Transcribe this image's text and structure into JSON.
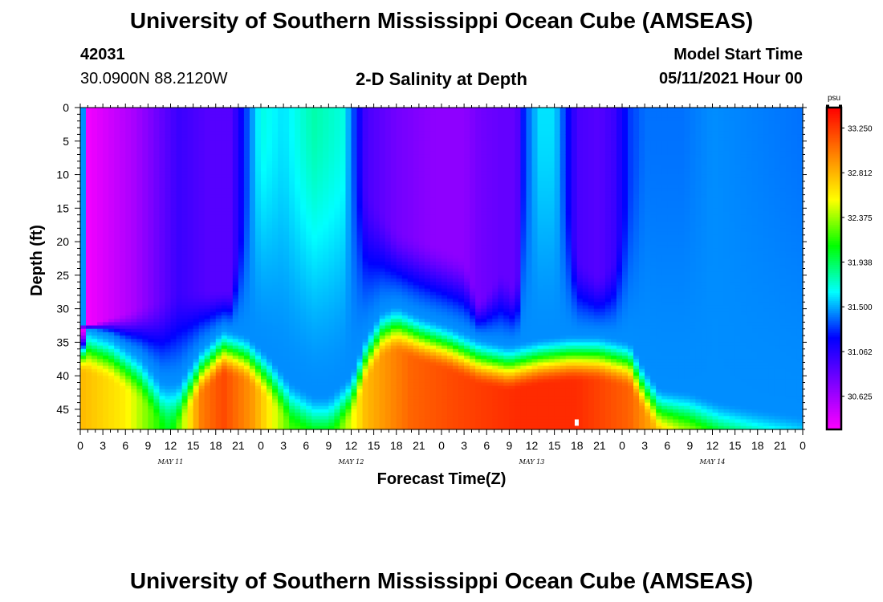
{
  "header": {
    "title": "University of Southern Mississippi Ocean Cube (AMSEAS)",
    "station_id": "42031",
    "station_coords": "30.0900N  88.2120W",
    "plot_title": "2-D Salinity at Depth",
    "model_start_label": "Model Start Time",
    "model_start_value": "05/11/2021 Hour 00"
  },
  "footer": {
    "title": "University of Southern Mississippi Ocean Cube (AMSEAS)"
  },
  "chart_data": {
    "type": "heatmap",
    "title": "2-D Salinity at Depth",
    "xlabel": "Forecast Time(Z)",
    "ylabel": "Depth (ft)",
    "x_range_hours": [
      0,
      96
    ],
    "y_range_ft": [
      0,
      48
    ],
    "x_tick_hours": [
      0,
      3,
      6,
      9,
      12,
      15,
      18,
      21,
      24,
      27,
      30,
      33,
      36,
      39,
      42,
      45,
      48,
      51,
      54,
      57,
      60,
      63,
      66,
      69,
      72,
      75,
      78,
      81,
      84,
      87,
      90,
      93,
      96
    ],
    "x_tick_labels": [
      "0",
      "3",
      "6",
      "9",
      "12",
      "15",
      "18",
      "21",
      "0",
      "3",
      "6",
      "9",
      "12",
      "15",
      "18",
      "21",
      "0",
      "3",
      "6",
      "9",
      "12",
      "15",
      "18",
      "21",
      "0",
      "3",
      "6",
      "9",
      "12",
      "15",
      "18",
      "21",
      "0"
    ],
    "date_labels": [
      {
        "label": "MAY 11",
        "hour": 12
      },
      {
        "label": "MAY 12",
        "hour": 36
      },
      {
        "label": "MAY 13",
        "hour": 60
      },
      {
        "label": "MAY 14",
        "hour": 84
      }
    ],
    "y_ticks": [
      0,
      5,
      10,
      15,
      20,
      25,
      30,
      35,
      40,
      45
    ],
    "y_tick_labels": [
      "0",
      "5",
      "10",
      "15",
      "20",
      "25",
      "30",
      "35",
      "40",
      "45"
    ],
    "colorbar": {
      "unit": "psu",
      "min": 30.3,
      "max": 33.45,
      "tick_values": [
        30.625,
        31.062,
        31.5,
        31.938,
        32.375,
        32.812,
        33.25
      ],
      "tick_labels": [
        "30.625",
        "31.062",
        "31.500",
        "31.938",
        "32.375",
        "32.812",
        "33.250"
      ],
      "colors": [
        "#ff00ff",
        "#8000ff",
        "#0000ff",
        "#00ffff",
        "#00ff00",
        "#ffff00",
        "#ff8000",
        "#ff0000"
      ]
    },
    "halocline_top_ft_by_hour": [
      [
        0,
        33.5
      ],
      [
        4,
        35
      ],
      [
        8,
        38
      ],
      [
        11,
        42
      ],
      [
        13,
        42
      ],
      [
        16,
        37
      ],
      [
        19,
        34
      ],
      [
        22,
        35
      ],
      [
        25,
        38
      ],
      [
        28,
        42
      ],
      [
        31,
        44
      ],
      [
        33,
        44
      ],
      [
        36,
        41
      ],
      [
        38,
        35
      ],
      [
        40,
        31.5
      ],
      [
        42,
        30.5
      ],
      [
        45,
        32
      ],
      [
        49,
        33.5
      ],
      [
        53,
        35.5
      ],
      [
        57,
        36.5
      ],
      [
        61,
        35.5
      ],
      [
        65,
        35
      ],
      [
        69,
        35
      ],
      [
        73,
        36
      ],
      [
        75,
        40
      ],
      [
        77,
        43
      ],
      [
        81,
        43.5
      ],
      [
        85,
        45
      ],
      [
        90,
        46
      ],
      [
        96,
        47
      ]
    ],
    "fresh_core_by_hour": [
      [
        0,
        30.3,
        33
      ],
      [
        7,
        30.6,
        30
      ],
      [
        13,
        31.0,
        27
      ],
      [
        17,
        30.9,
        27
      ],
      [
        20,
        30.9,
        27
      ],
      [
        22,
        31.3,
        12
      ],
      [
        24,
        31.7,
        0
      ],
      [
        27,
        31.6,
        0
      ],
      [
        31,
        31.8,
        0
      ],
      [
        35,
        31.7,
        0
      ],
      [
        36,
        31.4,
        0
      ],
      [
        38,
        30.95,
        12
      ],
      [
        42,
        30.8,
        18
      ],
      [
        47,
        30.7,
        20
      ],
      [
        51,
        30.7,
        22
      ],
      [
        53,
        30.8,
        29
      ],
      [
        56,
        30.85,
        24
      ],
      [
        58,
        30.85,
        27
      ],
      [
        59,
        31.3,
        8
      ],
      [
        61,
        31.6,
        0
      ],
      [
        63,
        31.6,
        0
      ],
      [
        66,
        30.95,
        22
      ],
      [
        69,
        30.9,
        25
      ],
      [
        71,
        31.0,
        22
      ],
      [
        73,
        31.3,
        10
      ],
      [
        75,
        31.4,
        0
      ],
      [
        80,
        31.4,
        0
      ],
      [
        84,
        31.45,
        0
      ],
      [
        96,
        31.4,
        0
      ]
    ],
    "deep_max_by_hour": [
      [
        0,
        32.8
      ],
      [
        6,
        32.6
      ],
      [
        12,
        32.0
      ],
      [
        16,
        33.0
      ],
      [
        19,
        33.2
      ],
      [
        23,
        32.9
      ],
      [
        28,
        32.2
      ],
      [
        34,
        32.2
      ],
      [
        38,
        32.8
      ],
      [
        44,
        33.1
      ],
      [
        50,
        33.2
      ],
      [
        58,
        33.3
      ],
      [
        66,
        33.3
      ],
      [
        73,
        33.1
      ],
      [
        80,
        32.5
      ],
      [
        88,
        32.2
      ],
      [
        96,
        32.0
      ]
    ]
  }
}
